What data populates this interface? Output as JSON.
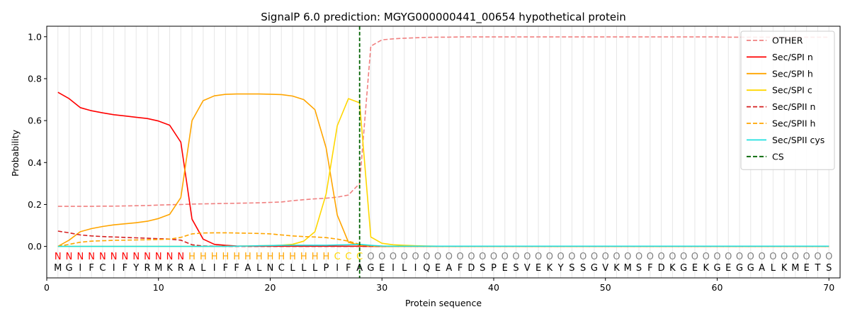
{
  "chart_data": {
    "type": "line",
    "title": "SignalP 6.0 prediction: MGYG000000441_00654 hypothetical protein",
    "xlabel": "Protein sequence",
    "ylabel": "Probability",
    "xlim": [
      0,
      71
    ],
    "ylim": [
      -0.15,
      1.05
    ],
    "x_ticks": [
      0,
      10,
      20,
      30,
      40,
      50,
      60,
      70
    ],
    "y_ticks": [
      0.0,
      0.2,
      0.4,
      0.6,
      0.8,
      1.0
    ],
    "x_tick_labels": [
      "0",
      "10",
      "20",
      "30",
      "40",
      "50",
      "60",
      "70"
    ],
    "y_tick_labels": [
      "0.0",
      "0.2",
      "0.4",
      "0.6",
      "0.8",
      "1.0"
    ],
    "grid": "vertical lines at each residue",
    "legend_position": "top-right",
    "cleavage_site": 28,
    "sequence": [
      "M",
      "G",
      "I",
      "F",
      "C",
      "I",
      "F",
      "Y",
      "R",
      "M",
      "K",
      "R",
      "A",
      "L",
      "I",
      "F",
      "F",
      "A",
      "L",
      "N",
      "C",
      "L",
      "L",
      "L",
      "P",
      "I",
      "F",
      "A",
      "G",
      "E",
      "I",
      "L",
      "I",
      "Q",
      "E",
      "A",
      "F",
      "D",
      "S",
      "P",
      "E",
      "S",
      "V",
      "E",
      "K",
      "Y",
      "S",
      "S",
      "G",
      "V",
      "K",
      "M",
      "S",
      "F",
      "D",
      "K",
      "G",
      "E",
      "K",
      "G",
      "E",
      "G",
      "G",
      "A",
      "L",
      "K",
      "M",
      "E",
      "T",
      "S"
    ],
    "region_labels": [
      "N",
      "N",
      "N",
      "N",
      "N",
      "N",
      "N",
      "N",
      "N",
      "N",
      "N",
      "N",
      "H",
      "H",
      "H",
      "H",
      "H",
      "H",
      "H",
      "H",
      "H",
      "H",
      "H",
      "H",
      "H",
      "C",
      "C",
      "C",
      "O",
      "O",
      "O",
      "O",
      "O",
      "O",
      "O",
      "O",
      "O",
      "O",
      "O",
      "O",
      "O",
      "O",
      "O",
      "O",
      "O",
      "O",
      "O",
      "O",
      "O",
      "O",
      "O",
      "O",
      "O",
      "O",
      "O",
      "O",
      "O",
      "O",
      "O",
      "O",
      "O",
      "O",
      "O",
      "O",
      "O",
      "O",
      "O",
      "O",
      "O",
      "O"
    ],
    "region_colors": {
      "N": "#ff0000",
      "H": "#ffa500",
      "C": "#ffd700",
      "O": "#808080"
    },
    "series": [
      {
        "name": "OTHER",
        "color": "#f08080",
        "dash": true,
        "values": [
          0.191,
          0.191,
          0.191,
          0.191,
          0.192,
          0.192,
          0.193,
          0.194,
          0.195,
          0.197,
          0.199,
          0.2,
          0.202,
          0.203,
          0.204,
          0.205,
          0.206,
          0.207,
          0.208,
          0.21,
          0.212,
          0.218,
          0.223,
          0.227,
          0.23,
          0.235,
          0.245,
          0.3,
          0.955,
          0.985,
          0.99,
          0.993,
          0.995,
          0.997,
          0.998,
          0.998,
          0.999,
          0.999,
          0.999,
          0.999,
          0.999,
          0.999,
          0.999,
          0.999,
          0.999,
          0.999,
          0.999,
          0.999,
          0.999,
          0.999,
          0.999,
          0.999,
          0.999,
          0.999,
          0.999,
          0.999,
          0.999,
          0.999,
          0.999,
          0.999,
          0.998,
          0.998,
          0.998,
          0.998,
          0.998,
          0.998,
          0.998,
          0.998,
          0.998,
          0.998
        ]
      },
      {
        "name": "Sec/SPI n",
        "color": "#ff0000",
        "dash": false,
        "values": [
          0.735,
          0.705,
          0.662,
          0.647,
          0.637,
          0.628,
          0.622,
          0.616,
          0.61,
          0.598,
          0.578,
          0.497,
          0.13,
          0.035,
          0.01,
          0.005,
          0.002,
          0.001,
          0.001,
          0.001,
          0.001,
          0.001,
          0.001,
          0.001,
          0.001,
          0.001,
          0.001,
          0.001,
          0,
          0,
          0,
          0,
          0,
          0,
          0,
          0,
          0,
          0,
          0,
          0,
          0,
          0,
          0,
          0,
          0,
          0,
          0,
          0,
          0,
          0,
          0,
          0,
          0,
          0,
          0,
          0,
          0,
          0,
          0,
          0,
          0,
          0,
          0,
          0,
          0,
          0,
          0,
          0,
          0,
          0
        ]
      },
      {
        "name": "Sec/SPI h",
        "color": "#ffa500",
        "dash": false,
        "values": [
          0.0,
          0.03,
          0.07,
          0.085,
          0.095,
          0.103,
          0.108,
          0.113,
          0.12,
          0.133,
          0.153,
          0.233,
          0.6,
          0.695,
          0.718,
          0.725,
          0.727,
          0.727,
          0.727,
          0.726,
          0.724,
          0.717,
          0.7,
          0.652,
          0.47,
          0.15,
          0.02,
          0.005,
          0.001,
          0,
          0,
          0,
          0,
          0,
          0,
          0,
          0,
          0,
          0,
          0,
          0,
          0,
          0,
          0,
          0,
          0,
          0,
          0,
          0,
          0,
          0,
          0,
          0,
          0,
          0,
          0,
          0,
          0,
          0,
          0,
          0,
          0,
          0,
          0,
          0,
          0,
          0,
          0,
          0,
          0
        ]
      },
      {
        "name": "Sec/SPI c",
        "color": "#ffd700",
        "dash": false,
        "values": [
          0,
          0,
          0,
          0,
          0,
          0,
          0,
          0,
          0,
          0,
          0,
          0,
          0,
          0,
          0,
          0.001,
          0.001,
          0.002,
          0.003,
          0.004,
          0.006,
          0.01,
          0.025,
          0.07,
          0.25,
          0.575,
          0.705,
          0.685,
          0.045,
          0.015,
          0.008,
          0.005,
          0.003,
          0.002,
          0.001,
          0.001,
          0.001,
          0.001,
          0.001,
          0.001,
          0.001,
          0.001,
          0.001,
          0.001,
          0.001,
          0.001,
          0.001,
          0.001,
          0.001,
          0.001,
          0.001,
          0.001,
          0.001,
          0.001,
          0.001,
          0.001,
          0.001,
          0.001,
          0.001,
          0.001,
          0.001,
          0.001,
          0.001,
          0.001,
          0.001,
          0.001,
          0.001,
          0.001,
          0.001,
          0.001
        ]
      },
      {
        "name": "Sec/SPII n",
        "color": "#d62020",
        "dash": true,
        "values": [
          0.073,
          0.065,
          0.055,
          0.05,
          0.047,
          0.045,
          0.043,
          0.041,
          0.039,
          0.037,
          0.035,
          0.03,
          0.008,
          0.002,
          0.001,
          0,
          0,
          0,
          0,
          0,
          0,
          0,
          0,
          0,
          0,
          0,
          0,
          0,
          0,
          0,
          0,
          0,
          0,
          0,
          0,
          0,
          0,
          0,
          0,
          0,
          0,
          0,
          0,
          0,
          0,
          0,
          0,
          0,
          0,
          0,
          0,
          0,
          0,
          0,
          0,
          0,
          0,
          0,
          0,
          0,
          0,
          0,
          0,
          0,
          0,
          0,
          0,
          0,
          0,
          0
        ]
      },
      {
        "name": "Sec/SPII h",
        "color": "#ffa500",
        "dash": true,
        "values": [
          0.0,
          0.01,
          0.02,
          0.025,
          0.027,
          0.029,
          0.03,
          0.031,
          0.032,
          0.033,
          0.035,
          0.043,
          0.06,
          0.064,
          0.065,
          0.065,
          0.064,
          0.063,
          0.062,
          0.06,
          0.055,
          0.05,
          0.047,
          0.045,
          0.042,
          0.035,
          0.025,
          0.01,
          0.003,
          0.001,
          0,
          0,
          0,
          0,
          0,
          0,
          0,
          0,
          0,
          0,
          0,
          0,
          0,
          0,
          0,
          0,
          0,
          0,
          0,
          0,
          0,
          0,
          0,
          0,
          0,
          0,
          0,
          0,
          0,
          0,
          0,
          0,
          0,
          0,
          0,
          0,
          0,
          0,
          0,
          0
        ]
      },
      {
        "name": "Sec/SPII cys",
        "color": "#20e0e0",
        "dash": false,
        "values": [
          0,
          0,
          0,
          0,
          0,
          0,
          0,
          0,
          0,
          0,
          0,
          0,
          0,
          0,
          0,
          0,
          0.001,
          0.002,
          0.003,
          0.004,
          0.005,
          0.006,
          0.006,
          0.006,
          0.006,
          0.007,
          0.008,
          0.01,
          0.005,
          0.002,
          0.001,
          0.001,
          0.001,
          0.001,
          0.001,
          0.001,
          0.001,
          0.001,
          0.001,
          0.001,
          0.001,
          0.001,
          0.001,
          0.001,
          0.001,
          0.001,
          0.001,
          0.001,
          0.001,
          0.001,
          0.001,
          0.001,
          0.001,
          0.001,
          0.001,
          0.001,
          0.001,
          0.001,
          0.001,
          0.001,
          0.001,
          0.001,
          0.001,
          0.001,
          0.001,
          0.001,
          0.001,
          0.001,
          0.001,
          0.001
        ]
      }
    ],
    "legend": [
      {
        "name": "OTHER",
        "color": "#f08080",
        "dash": true
      },
      {
        "name": "Sec/SPI n",
        "color": "#ff0000",
        "dash": false
      },
      {
        "name": "Sec/SPI h",
        "color": "#ffa500",
        "dash": false
      },
      {
        "name": "Sec/SPI c",
        "color": "#ffd700",
        "dash": false
      },
      {
        "name": "Sec/SPII n",
        "color": "#d62020",
        "dash": true
      },
      {
        "name": "Sec/SPII h",
        "color": "#ffa500",
        "dash": true
      },
      {
        "name": "Sec/SPII cys",
        "color": "#20e0e0",
        "dash": false
      },
      {
        "name": "CS",
        "color": "#006400",
        "dash": true
      }
    ]
  }
}
